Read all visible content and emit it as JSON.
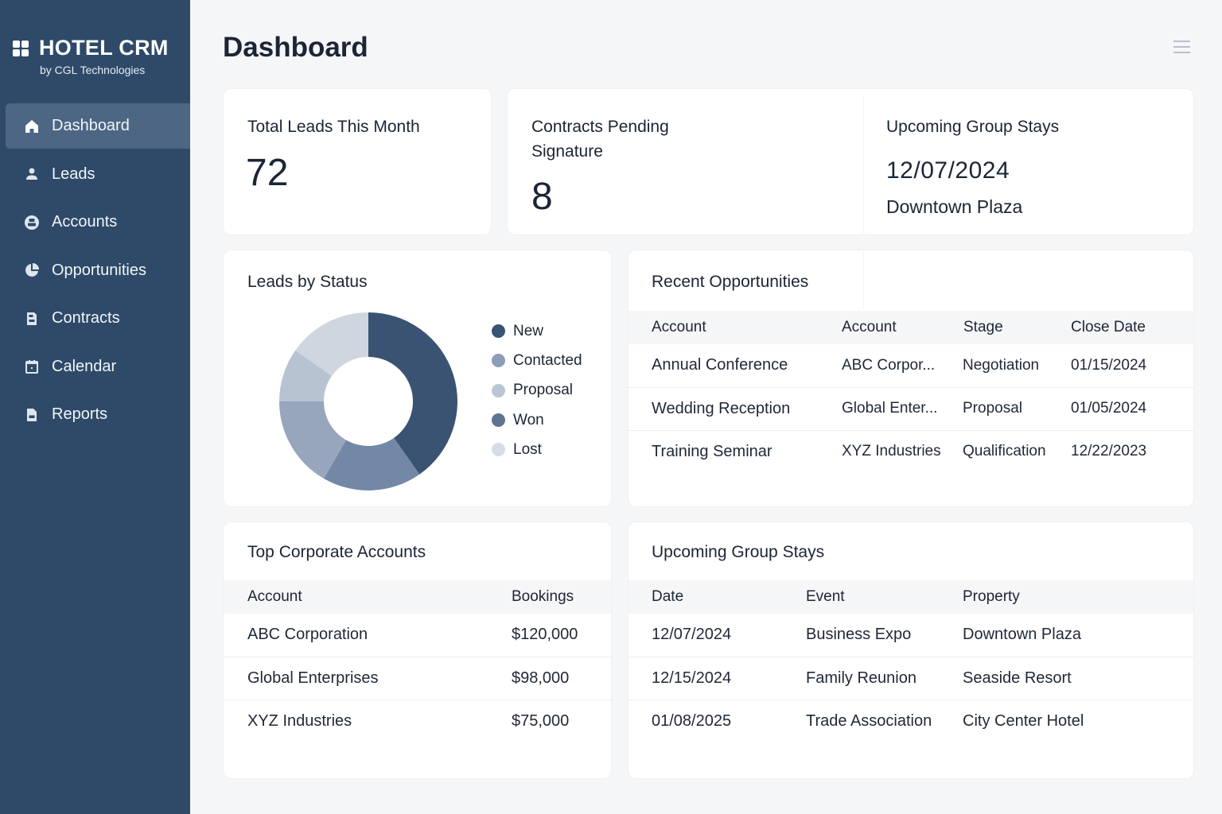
{
  "app": {
    "title": "HOTEL CRM",
    "subtitle": "by CGL Technologies",
    "logo_icon": "grid-icon"
  },
  "sidebar": {
    "items": [
      {
        "label": "Dashboard",
        "icon": "home-icon",
        "active": true
      },
      {
        "label": "Leads",
        "icon": "user-icon",
        "active": false
      },
      {
        "label": "Accounts",
        "icon": "account-circle-icon",
        "active": false
      },
      {
        "label": "Opportunities",
        "icon": "pie-chart-icon",
        "active": false
      },
      {
        "label": "Contracts",
        "icon": "document-icon",
        "active": false
      },
      {
        "label": "Calendar",
        "icon": "calendar-icon",
        "active": false
      },
      {
        "label": "Reports",
        "icon": "report-icon",
        "active": false
      }
    ]
  },
  "header": {
    "title": "Dashboard",
    "menu_icon": "hamburger-menu-icon"
  },
  "stats": {
    "total_leads": {
      "label": "Total Leads This Month",
      "value": "72"
    },
    "contracts_pending": {
      "label": "Contracts Pending Signature",
      "value": "8"
    },
    "upcoming_stay": {
      "label": "Upcoming Group Stays",
      "date": "12/07/2024",
      "property": "Downtown Plaza"
    }
  },
  "leads_by_status": {
    "title": "Leads by Status"
  },
  "chart_data": {
    "type": "pie",
    "title": "Leads by Status",
    "donut": true,
    "categories": [
      "New",
      "Won",
      "Contacted",
      "Proposal",
      "Lost"
    ],
    "values": [
      29,
      13,
      12,
      7,
      11
    ],
    "colors": [
      "#3a5373",
      "#7388a6",
      "#97a6bd",
      "#b8c3d2",
      "#cfd6e0"
    ],
    "legend": [
      {
        "label": "New",
        "color": "#3a5373"
      },
      {
        "label": "Contacted",
        "color": "#8e9db5"
      },
      {
        "label": "Proposal",
        "color": "#bcc5d3"
      },
      {
        "label": "Won",
        "color": "#5f7491"
      },
      {
        "label": "Lost",
        "color": "#d6dce5"
      }
    ],
    "legend_position": "right"
  },
  "recent_opportunities": {
    "title": "Recent Opportunities",
    "columns": [
      "Account",
      "Account",
      "Stage",
      "Close Date"
    ],
    "rows": [
      [
        "Annual Conference",
        "ABC Corpor...",
        "Negotiation",
        "01/15/2024"
      ],
      [
        "Wedding Reception",
        "Global Enter...",
        "Proposal",
        "01/05/2024"
      ],
      [
        "Training Seminar",
        "XYZ Industries",
        "Qualification",
        "12/22/2023"
      ]
    ]
  },
  "top_accounts": {
    "title": "Top Corporate Accounts",
    "columns": [
      "Account",
      "Bookings"
    ],
    "rows": [
      [
        "ABC Corporation",
        "$120,000"
      ],
      [
        "Global Enterprises",
        "$98,000"
      ],
      [
        "XYZ Industries",
        "$75,000"
      ]
    ]
  },
  "group_stays": {
    "title": "Upcoming Group Stays",
    "columns": [
      "Date",
      "Event",
      "Property"
    ],
    "rows": [
      [
        "12/07/2024",
        "Business Expo",
        "Downtown Plaza"
      ],
      [
        "12/15/2024",
        "Family Reunion",
        "Seaside Resort"
      ],
      [
        "01/08/2025",
        "Trade Association",
        "City Center Hotel"
      ]
    ]
  }
}
